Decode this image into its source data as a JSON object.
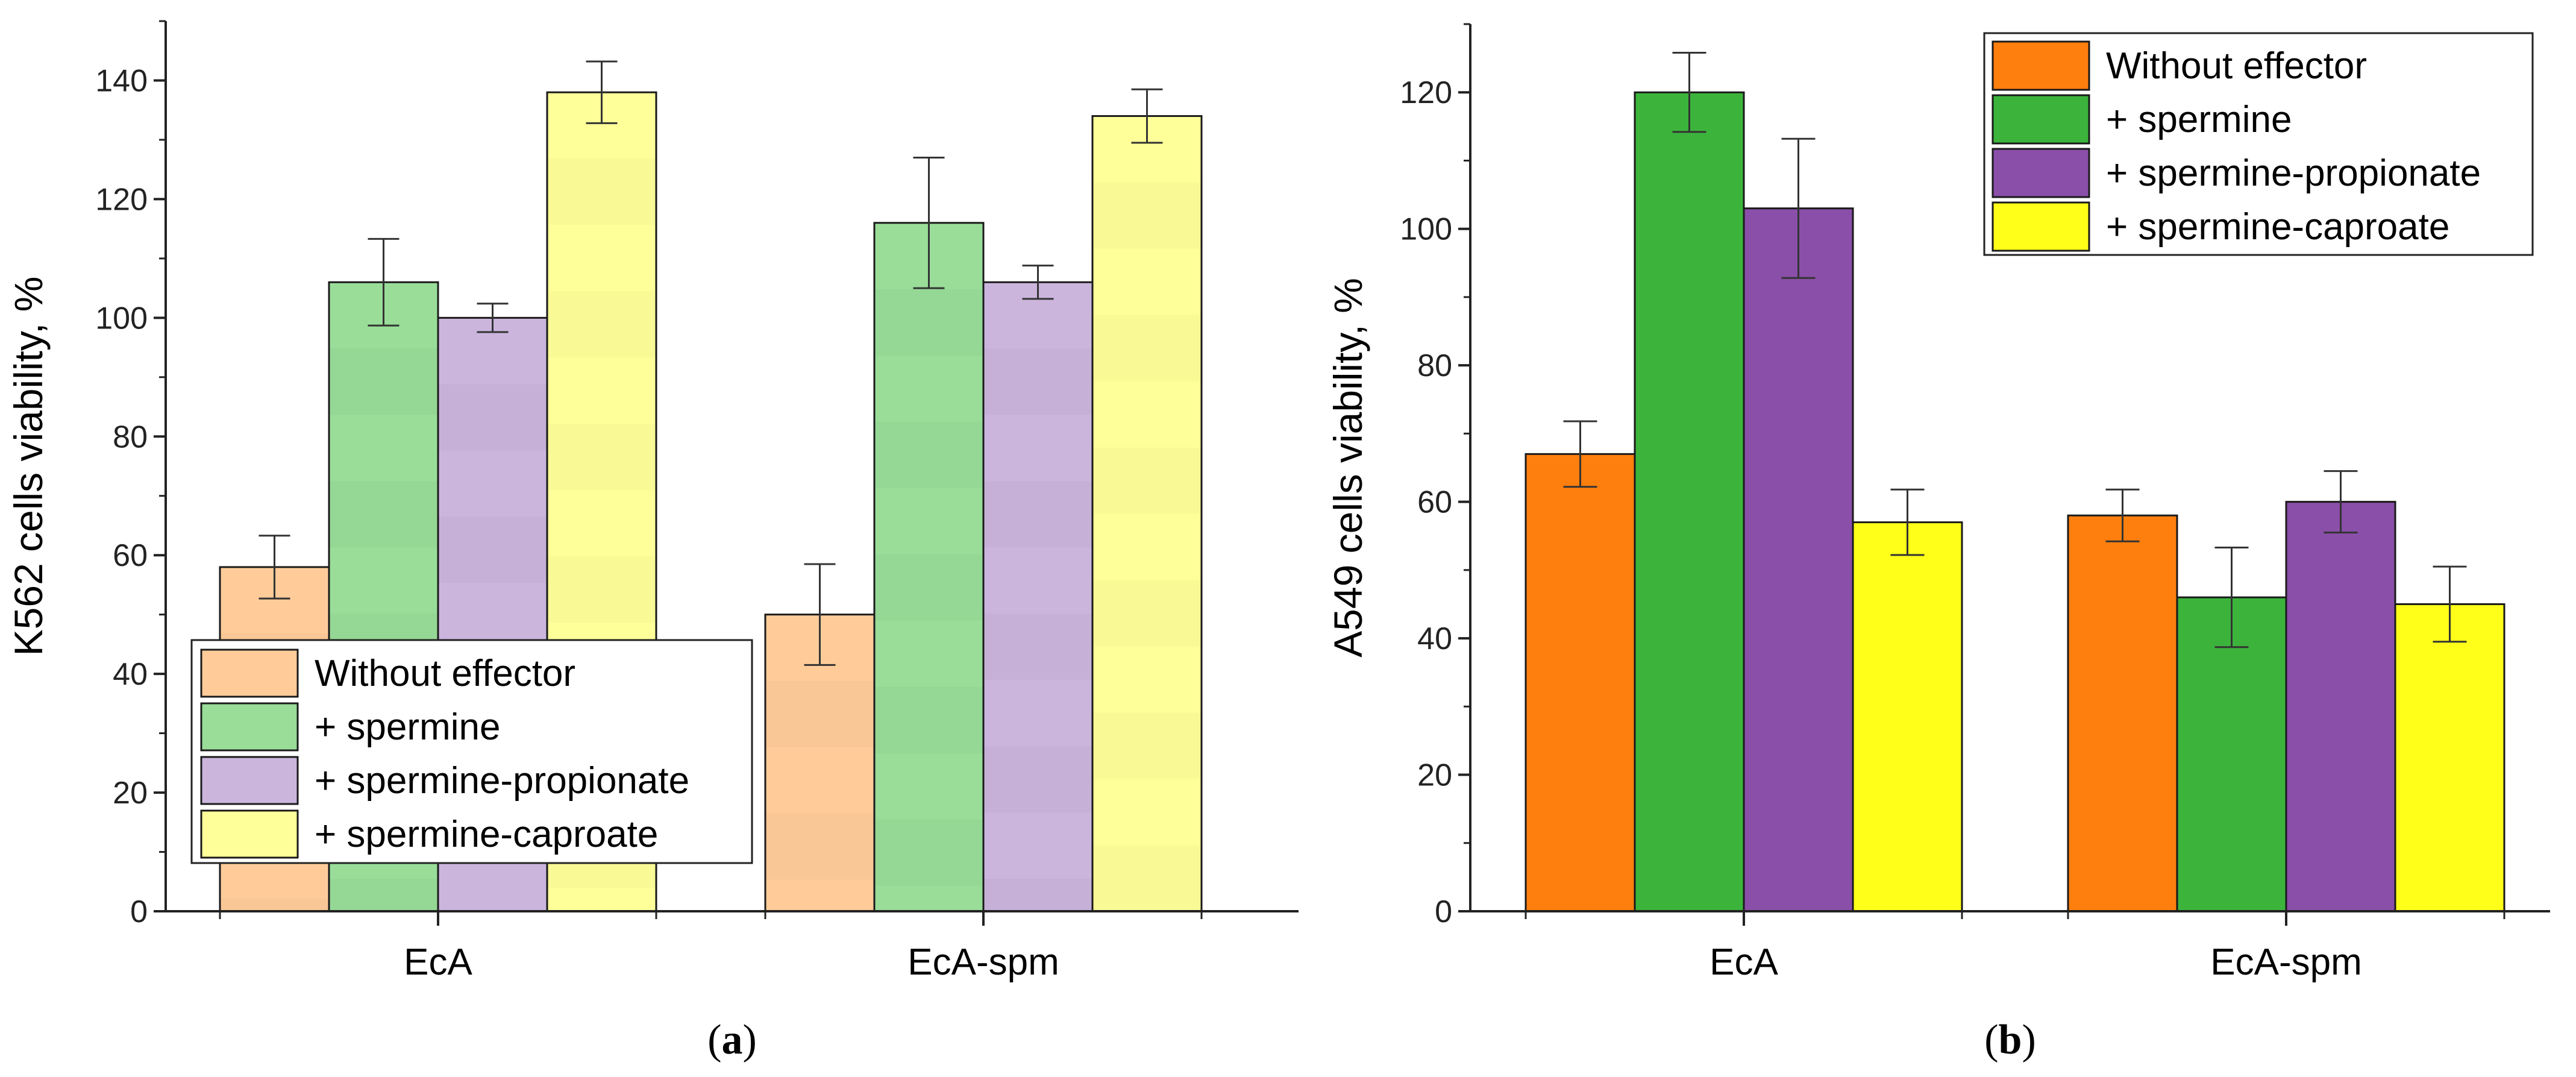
{
  "chart_data": [
    {
      "panel": "a",
      "caption_open": "(",
      "caption_letter": "a",
      "caption_close": ")",
      "type": "bar",
      "ylabel": "K562 cells viability, %",
      "xlabel": "",
      "ylim": [
        0,
        150
      ],
      "yticks": [
        0,
        20,
        40,
        60,
        80,
        100,
        120,
        140
      ],
      "categories": [
        "EcA",
        "EcA-spm"
      ],
      "faded": true,
      "legend_position": "lower-left",
      "series": [
        {
          "name": "Without effector",
          "color": "#FFCC99",
          "values": [
            58,
            50
          ],
          "errors": [
            5.3,
            8.5
          ]
        },
        {
          "name": "+ spermine",
          "color": "#99DD99",
          "values": [
            106,
            116
          ],
          "errors": [
            7.3,
            11
          ]
        },
        {
          "name": "+ spermine-propionate",
          "color": "#CBB5DD",
          "values": [
            100,
            106
          ],
          "errors": [
            2.4,
            2.8
          ]
        },
        {
          "name": "+ spermine-caproate",
          "color": "#FFFF99",
          "values": [
            138,
            134
          ],
          "errors": [
            5.2,
            4.5
          ]
        }
      ]
    },
    {
      "panel": "b",
      "caption_open": "(",
      "caption_letter": "b",
      "caption_close": ")",
      "type": "bar",
      "ylabel": "A549 cells viability, %",
      "xlabel": "",
      "ylim": [
        0,
        130
      ],
      "yticks": [
        0,
        20,
        40,
        60,
        80,
        100,
        120
      ],
      "categories": [
        "EcA",
        "EcA-spm"
      ],
      "faded": false,
      "legend_position": "top-right",
      "series": [
        {
          "name": "Without effector",
          "color": "#FF7F0E",
          "values": [
            67,
            58
          ],
          "errors": [
            4.8,
            3.8
          ]
        },
        {
          "name": "+ spermine",
          "color": "#3CB43C",
          "values": [
            120,
            46
          ],
          "errors": [
            5.8,
            7.3
          ]
        },
        {
          "name": "+ spermine-propionate",
          "color": "#8A4FA8",
          "values": [
            103,
            60
          ],
          "errors": [
            10.2,
            4.5
          ]
        },
        {
          "name": "+ spermine-caproate",
          "color": "#FFFF1A",
          "values": [
            57,
            45
          ],
          "errors": [
            4.8,
            5.5
          ]
        }
      ]
    }
  ]
}
